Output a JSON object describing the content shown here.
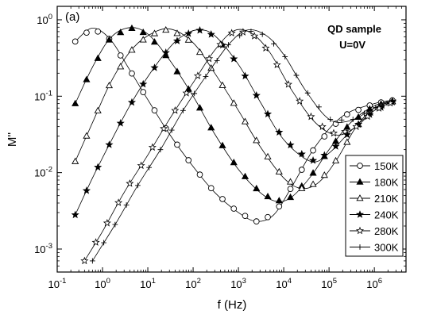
{
  "chart_data": {
    "type": "line",
    "panel_label": "(a)",
    "annotation": [
      "QD sample",
      "U=0V"
    ],
    "xlabel": "f (Hz)",
    "ylabel": "M''",
    "x_scale": "log",
    "y_scale": "log",
    "xlim": [
      0.1,
      5000000
    ],
    "ylim": [
      0.0005,
      1.5
    ],
    "x_ticks": [
      {
        "value": 0.1,
        "base": "10",
        "exp": "-1"
      },
      {
        "value": 1,
        "base": "10",
        "exp": "0"
      },
      {
        "value": 10,
        "base": "10",
        "exp": "1"
      },
      {
        "value": 100,
        "base": "10",
        "exp": "2"
      },
      {
        "value": 1000,
        "base": "10",
        "exp": "3"
      },
      {
        "value": 10000,
        "base": "10",
        "exp": "4"
      },
      {
        "value": 100000,
        "base": "10",
        "exp": "5"
      },
      {
        "value": 1000000,
        "base": "10",
        "exp": "6"
      }
    ],
    "y_ticks": [
      {
        "value": 0.001,
        "base": "10",
        "exp": "-3"
      },
      {
        "value": 0.01,
        "base": "10",
        "exp": "-2"
      },
      {
        "value": 0.1,
        "base": "10",
        "exp": "-1"
      },
      {
        "value": 1,
        "base": "10",
        "exp": "0"
      }
    ],
    "legend_position": "right",
    "grid": false,
    "series": [
      {
        "name": "150K",
        "marker": "circle-open",
        "x": [
          0.25,
          0.6,
          1.5,
          4,
          10,
          30,
          100,
          300,
          1000,
          2500,
          6000,
          15000,
          50000,
          200000,
          1000000,
          3000000
        ],
        "y": [
          0.52,
          0.78,
          0.55,
          0.22,
          0.09,
          0.032,
          0.012,
          0.0055,
          0.003,
          0.0023,
          0.0028,
          0.0065,
          0.022,
          0.055,
          0.08,
          0.09
        ]
      },
      {
        "name": "180K",
        "marker": "triangle-filled",
        "x": [
          0.25,
          0.6,
          1.5,
          4,
          10,
          30,
          100,
          300,
          1000,
          3000,
          7000,
          15000,
          40000,
          100000,
          300000,
          1000000,
          3000000
        ],
        "y": [
          0.08,
          0.24,
          0.58,
          0.79,
          0.65,
          0.3,
          0.1,
          0.032,
          0.011,
          0.0055,
          0.0042,
          0.0048,
          0.009,
          0.02,
          0.045,
          0.075,
          0.088
        ]
      },
      {
        "name": "210K",
        "marker": "triangle-open",
        "x": [
          0.25,
          0.6,
          1.5,
          4,
          10,
          30,
          100,
          300,
          1000,
          3000,
          10000,
          25000,
          60000,
          150000,
          400000,
          1000000,
          3000000
        ],
        "y": [
          0.014,
          0.045,
          0.15,
          0.38,
          0.62,
          0.76,
          0.5,
          0.2,
          0.065,
          0.022,
          0.0085,
          0.0062,
          0.0075,
          0.015,
          0.04,
          0.07,
          0.088
        ]
      },
      {
        "name": "240K",
        "marker": "star-filled",
        "x": [
          0.25,
          0.6,
          1.5,
          4,
          10,
          30,
          60,
          130,
          300,
          1000,
          3000,
          10000,
          40000,
          100000,
          300000,
          1000000,
          3000000
        ],
        "y": [
          0.0028,
          0.0085,
          0.025,
          0.075,
          0.18,
          0.43,
          0.62,
          0.74,
          0.62,
          0.26,
          0.085,
          0.027,
          0.014,
          0.018,
          0.035,
          0.065,
          0.088
        ]
      },
      {
        "name": "280K",
        "marker": "star-open",
        "x": [
          0.4,
          1,
          3,
          10,
          30,
          100,
          300,
          800,
          2000,
          5000,
          15000,
          50000,
          150000,
          400000,
          1000000,
          3000000
        ],
        "y": [
          0.0007,
          0.0017,
          0.0055,
          0.017,
          0.05,
          0.15,
          0.4,
          0.72,
          0.66,
          0.37,
          0.12,
          0.045,
          0.031,
          0.04,
          0.065,
          0.088
        ]
      },
      {
        "name": "300K",
        "marker": "plus",
        "x": [
          0.6,
          2,
          6,
          20,
          60,
          200,
          600,
          1500,
          4000,
          10000,
          30000,
          100000,
          300000,
          1000000,
          3000000
        ],
        "y": [
          0.0007,
          0.0022,
          0.0068,
          0.021,
          0.065,
          0.19,
          0.47,
          0.73,
          0.63,
          0.35,
          0.12,
          0.05,
          0.048,
          0.07,
          0.09
        ]
      }
    ]
  }
}
